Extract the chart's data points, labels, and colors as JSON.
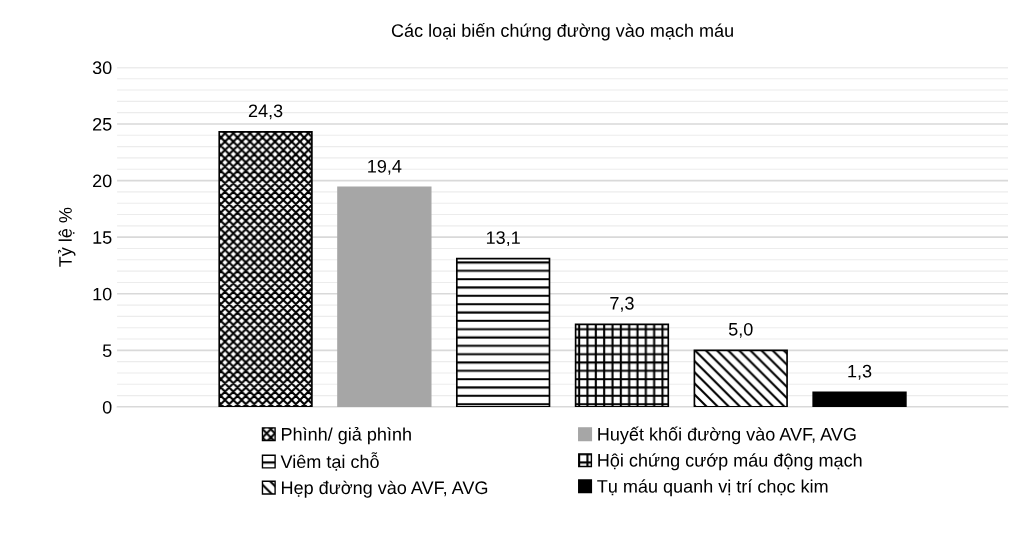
{
  "chart_data": {
    "type": "bar",
    "title": "Các loại biến chứng đường vào mạch máu",
    "ylabel": "Tỷ lệ %",
    "categories": [
      null
    ],
    "series": [
      {
        "name": "Phình/ giả phình",
        "color": "#000000",
        "values": [
          24.3
        ],
        "value_labels": [
          "24,3"
        ]
      },
      {
        "name": "Huyết khối đường vào AVF, AVG",
        "color": "#a6a6a6",
        "values": [
          19.4
        ],
        "value_labels": [
          "19,4"
        ]
      },
      {
        "name": "Viêm tại chỗ",
        "color": "#000000",
        "values": [
          13.1
        ],
        "value_labels": [
          "13,1"
        ]
      },
      {
        "name": "Hội chứng cướp máu động mạch",
        "color": "#000000",
        "values": [
          7.3
        ],
        "value_labels": [
          "7,3"
        ]
      },
      {
        "name": "Hẹp đường vào AVF, AVG",
        "color": "#000000",
        "values": [
          5.0
        ],
        "value_labels": [
          "5,0"
        ]
      },
      {
        "name": "Tụ máu quanh vị trí chọc kim",
        "color": "#000000",
        "values": [
          1.3
        ],
        "value_labels": [
          "1,3"
        ]
      }
    ],
    "ylim": [
      0,
      30
    ],
    "yticks": [
      0,
      5,
      10,
      15,
      20,
      25,
      30
    ],
    "grid": "y",
    "legend": "bottom"
  }
}
